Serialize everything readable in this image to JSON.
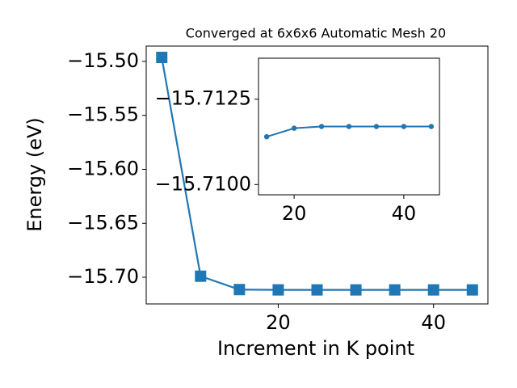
{
  "chart_data": [
    {
      "type": "line",
      "title": "Converged at 6x6x6 Automatic Mesh 20",
      "x_label": "Increment in K point",
      "y_label": "Energy (eV)",
      "x": [
        5,
        10,
        15,
        20,
        25,
        30,
        35,
        40,
        45
      ],
      "series": [
        {
          "color": "#1f77b4",
          "marker": "square",
          "values": [
            -15.4963,
            -15.699,
            -15.7114,
            -15.7117,
            -15.7117,
            -15.7117,
            -15.7117,
            -15.7117,
            -15.7117
          ]
        }
      ],
      "xlim": [
        3,
        47
      ],
      "xticks": [
        20,
        40
      ],
      "ylim": [
        -15.7247,
        -15.4858
      ],
      "yticks": [
        {
          "value": -15.7,
          "label": "−15.70"
        },
        {
          "value": -15.65,
          "label": "−15.65"
        },
        {
          "value": -15.6,
          "label": "−15.60"
        },
        {
          "value": -15.55,
          "label": "−15.55"
        },
        {
          "value": -15.5,
          "label": "−15.50"
        }
      ]
    },
    {
      "type": "line",
      "x": [
        15,
        20,
        25,
        30,
        35,
        40,
        45
      ],
      "series": [
        {
          "color": "#1f77b4",
          "marker": "circle",
          "values": [
            -15.7114,
            -15.71165,
            -15.7117,
            -15.7117,
            -15.7117,
            -15.7117,
            -15.7117
          ]
        }
      ],
      "xlim": [
        13.5,
        46.5
      ],
      "xticks": [
        20,
        40
      ],
      "ylim": [
        -15.7097,
        -15.7137
      ],
      "yticks": [
        {
          "value": -15.71,
          "label": "−15.7100"
        },
        {
          "value": -15.7125,
          "label": "−15.7125"
        }
      ]
    }
  ]
}
